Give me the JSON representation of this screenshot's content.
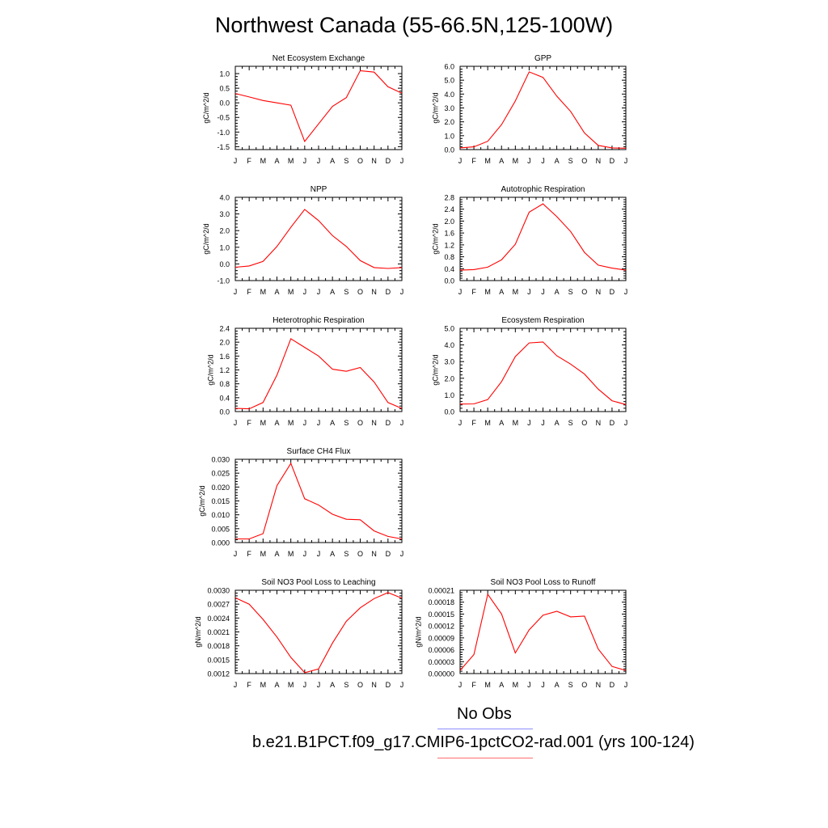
{
  "page": {
    "title": "Northwest Canada (55-66.5N,125-100W)"
  },
  "legend": {
    "items": [
      {
        "label": "No Obs",
        "color": "#8c8cff"
      },
      {
        "label": "b.e21.B1PCT.f09_g17.CMIP6-1pctCO2-rad.001 (yrs 100-124)",
        "color": "#ff6f6f"
      }
    ]
  },
  "chart_data": [
    {
      "type": "line",
      "title": "Net Ecosystem Exchange",
      "ylabel": "gC/m^2/d",
      "x": [
        "J",
        "F",
        "M",
        "A",
        "M",
        "J",
        "J",
        "A",
        "S",
        "O",
        "N",
        "D",
        "J"
      ],
      "ylim": [
        -1.6,
        1.25
      ],
      "yticks": [
        "1.0",
        "0.5",
        "0.0",
        "-0.5",
        "-1.0",
        "-1.5"
      ],
      "series": [
        {
          "color": "#ff0000",
          "values": [
            0.32,
            0.2,
            0.08,
            0.0,
            -0.08,
            -1.32,
            -0.72,
            -0.12,
            0.18,
            1.1,
            1.05,
            0.55,
            0.33
          ]
        }
      ]
    },
    {
      "type": "line",
      "title": "GPP",
      "ylabel": "gC/m^2/d",
      "x": [
        "J",
        "F",
        "M",
        "A",
        "M",
        "J",
        "J",
        "A",
        "S",
        "O",
        "N",
        "D",
        "J"
      ],
      "ylim": [
        0,
        6
      ],
      "yticks": [
        "6.0",
        "5.0",
        "4.0",
        "3.0",
        "2.0",
        "1.0",
        "0.0"
      ],
      "series": [
        {
          "color": "#ff0000",
          "values": [
            0.12,
            0.2,
            0.6,
            1.8,
            3.5,
            5.6,
            5.2,
            3.85,
            2.75,
            1.2,
            0.3,
            0.12,
            0.1
          ]
        }
      ]
    },
    {
      "type": "line",
      "title": "NPP",
      "ylabel": "gC/m^2/d",
      "x": [
        "J",
        "F",
        "M",
        "A",
        "M",
        "J",
        "J",
        "A",
        "S",
        "O",
        "N",
        "D",
        "J"
      ],
      "ylim": [
        -1,
        4
      ],
      "yticks": [
        "4.0",
        "3.0",
        "2.0",
        "1.0",
        "0.0",
        "-1.0"
      ],
      "series": [
        {
          "color": "#ff0000",
          "values": [
            -0.2,
            -0.12,
            0.15,
            1.05,
            2.2,
            3.27,
            2.6,
            1.7,
            1.05,
            0.2,
            -0.22,
            -0.27,
            -0.22
          ]
        }
      ]
    },
    {
      "type": "line",
      "title": "Autotrophic Respiration",
      "ylabel": "gC/m^2/d",
      "x": [
        "J",
        "F",
        "M",
        "A",
        "M",
        "J",
        "J",
        "A",
        "S",
        "O",
        "N",
        "D",
        "J"
      ],
      "ylim": [
        0,
        2.8
      ],
      "yticks": [
        "2.8",
        "2.4",
        "2.0",
        "1.6",
        "1.2",
        "0.8",
        "0.4",
        "0.0"
      ],
      "series": [
        {
          "color": "#ff0000",
          "values": [
            0.35,
            0.37,
            0.45,
            0.7,
            1.22,
            2.3,
            2.58,
            2.15,
            1.65,
            0.95,
            0.52,
            0.42,
            0.35
          ]
        }
      ]
    },
    {
      "type": "line",
      "title": "Heterotrophic Respiration",
      "ylabel": "gC/m^2/d",
      "x": [
        "J",
        "F",
        "M",
        "A",
        "M",
        "J",
        "J",
        "A",
        "S",
        "O",
        "N",
        "D",
        "J"
      ],
      "ylim": [
        0,
        2.4
      ],
      "yticks": [
        "2.4",
        "2.0",
        "1.6",
        "1.2",
        "0.8",
        "0.4",
        "0.0"
      ],
      "series": [
        {
          "color": "#ff0000",
          "values": [
            0.09,
            0.08,
            0.26,
            1.05,
            2.1,
            1.85,
            1.6,
            1.22,
            1.16,
            1.27,
            0.85,
            0.26,
            0.09
          ]
        }
      ]
    },
    {
      "type": "line",
      "title": "Ecosystem Respiration",
      "ylabel": "gC/m^2/d",
      "x": [
        "J",
        "F",
        "M",
        "A",
        "M",
        "J",
        "J",
        "A",
        "S",
        "O",
        "N",
        "D",
        "J"
      ],
      "ylim": [
        0,
        5
      ],
      "yticks": [
        "5.0",
        "4.0",
        "3.0",
        "2.0",
        "1.0",
        "0.0"
      ],
      "series": [
        {
          "color": "#ff0000",
          "values": [
            0.45,
            0.46,
            0.72,
            1.8,
            3.3,
            4.12,
            4.18,
            3.35,
            2.85,
            2.25,
            1.35,
            0.65,
            0.42
          ]
        }
      ]
    },
    {
      "type": "line",
      "title": "Surface CH4 Flux",
      "ylabel": "gC/m^2/d",
      "x": [
        "J",
        "F",
        "M",
        "A",
        "M",
        "J",
        "J",
        "A",
        "S",
        "O",
        "N",
        "D",
        "J"
      ],
      "ylim": [
        0,
        0.03
      ],
      "yticks": [
        "0.030",
        "0.025",
        "0.020",
        "0.015",
        "0.010",
        "0.005",
        "0.000"
      ],
      "series": [
        {
          "color": "#ff0000",
          "values": [
            0.0013,
            0.0013,
            0.0032,
            0.0205,
            0.0285,
            0.0158,
            0.0135,
            0.0102,
            0.0084,
            0.0082,
            0.0042,
            0.0022,
            0.0013
          ]
        }
      ]
    },
    {
      "type": "line",
      "title": "Soil NO3 Pool Loss to Leaching",
      "ylabel": "gN/m^2/d",
      "x": [
        "J",
        "F",
        "M",
        "A",
        "M",
        "J",
        "J",
        "A",
        "S",
        "O",
        "N",
        "D",
        "J"
      ],
      "ylim": [
        0.0012,
        0.003
      ],
      "yticks": [
        "0.0030",
        "0.0027",
        "0.0024",
        "0.0021",
        "0.0018",
        "0.0015",
        "0.0012"
      ],
      "series": [
        {
          "color": "#ff0000",
          "values": [
            0.00284,
            0.0027,
            0.00237,
            0.00199,
            0.00155,
            0.00122,
            0.0013,
            0.00186,
            0.00233,
            0.00262,
            0.00282,
            0.00295,
            0.00283
          ]
        }
      ]
    },
    {
      "type": "line",
      "title": "Soil NO3 Pool Loss to Runoff",
      "ylabel": "gN/m^2/d",
      "x": [
        "J",
        "F",
        "M",
        "A",
        "M",
        "J",
        "J",
        "A",
        "S",
        "O",
        "N",
        "D",
        "J"
      ],
      "ylim": [
        0,
        0.00021
      ],
      "yticks": [
        "0.00021",
        "0.00018",
        "0.00015",
        "0.00012",
        "0.00009",
        "0.00006",
        "0.00003",
        "0.00000"
      ],
      "series": [
        {
          "color": "#ff0000",
          "values": [
            8e-06,
            4.8e-05,
            0.0002,
            0.00015,
            5.2e-05,
            0.00011,
            0.000147,
            0.000157,
            0.000143,
            0.000145,
            6.2e-05,
            1.8e-05,
            8e-06
          ]
        }
      ]
    }
  ]
}
